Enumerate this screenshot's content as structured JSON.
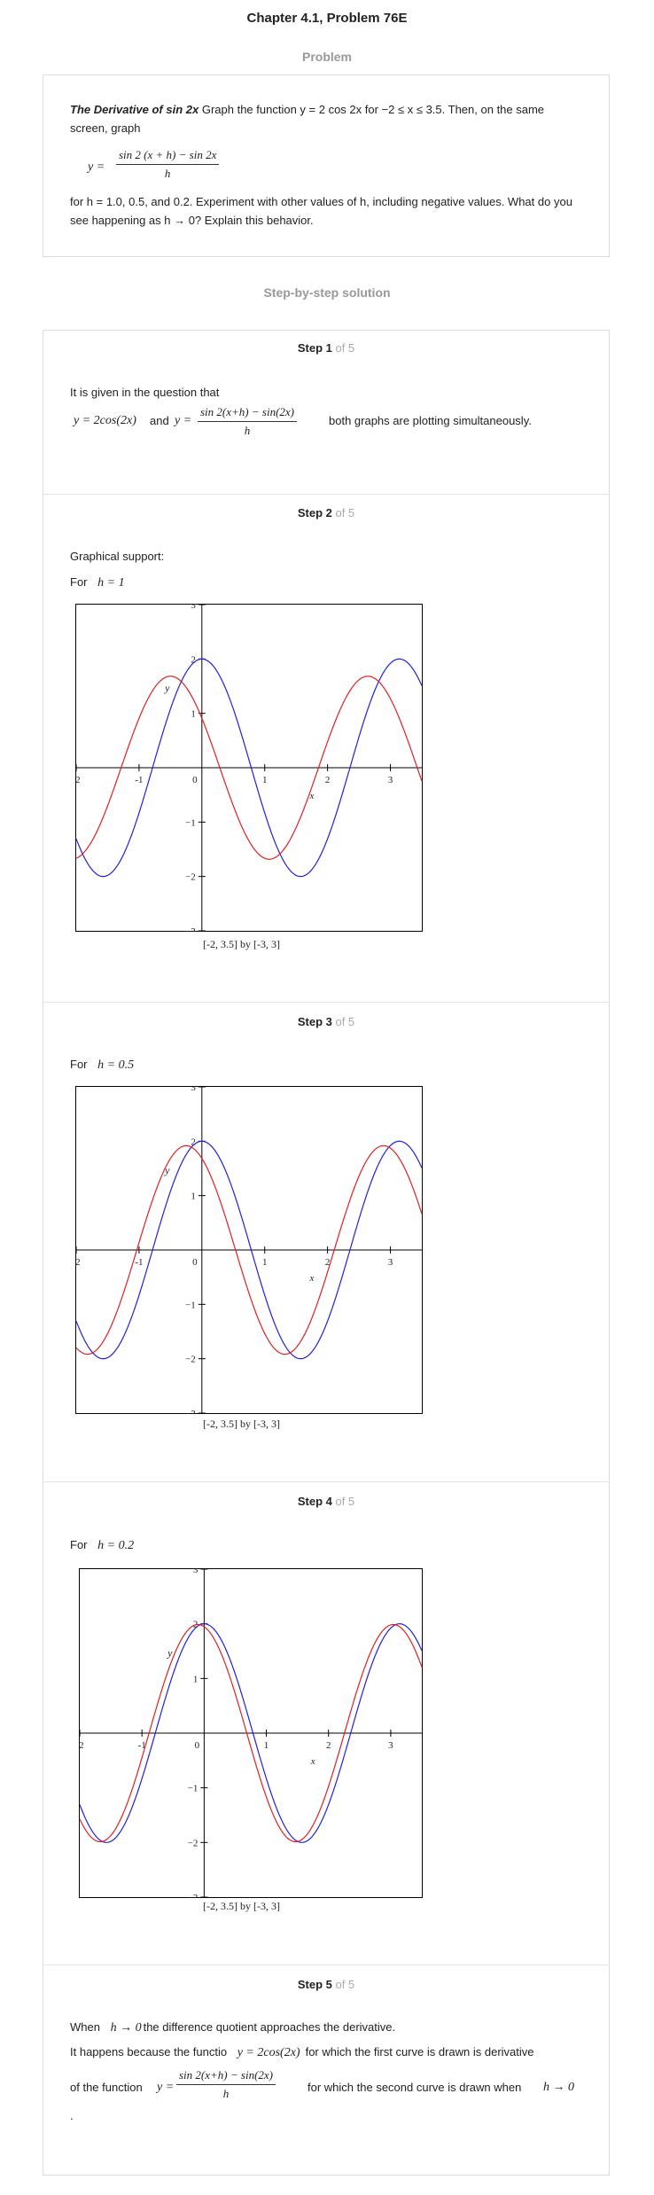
{
  "header": {
    "title": "Chapter 4.1, Problem 76E"
  },
  "problem": {
    "heading": "Problem",
    "bold_title": "The Derivative of sin 2x",
    "text_1": " Graph the function y = 2 cos 2x for −2 ≤ x ≤ 3.5. Then, on the same screen, graph",
    "formula_lhs": "y =",
    "formula_num": "sin 2 (x + h)  −  sin 2x",
    "formula_den": "h",
    "text_2": "for h = 1.0, 0.5, and 0.2. Experiment with other values of h, including negative values. What do you see happening as h → 0? Explain this behavior."
  },
  "solution": {
    "heading": "Step-by-step solution",
    "steps": [
      {
        "num": "Step 1",
        "of": " of 5",
        "intro": "It is given in the question that",
        "eq1": "y = 2cos(2x)",
        "and": "and",
        "eq2_lhs": "y =",
        "eq2_num": "sin 2(x+h) − sin(2x)",
        "eq2_den": "h",
        "tail": "both graphs are plotting simultaneously."
      },
      {
        "num": "Step 2",
        "of": " of 5",
        "label1": "Graphical support:",
        "label2": "For",
        "hval": "h = 1"
      },
      {
        "num": "Step 3",
        "of": " of 5",
        "label2": "For",
        "hval": "h = 0.5"
      },
      {
        "num": "Step 4",
        "of": " of 5",
        "label2": "For",
        "hval": "h = 0.2"
      },
      {
        "num": "Step 5",
        "of": " of 5",
        "line1_a": "When",
        "line1_math": "h → 0",
        "line1_b": "the difference quotient approaches the derivative.",
        "line2_a": "It happens because the functio",
        "line2_math": "y = 2cos(2x)",
        "line2_b": "for which the first curve is drawn is derivative",
        "line3_a": "of the function",
        "line3_lhs": "y =",
        "line3_num": "sin 2(x+h) − sin(2x)",
        "line3_den": "h",
        "line3_b": "for which the second curve is drawn when",
        "line3_math": "h → 0",
        "line4": "."
      }
    ]
  },
  "chart_data": [
    {
      "type": "line",
      "title": "",
      "window_caption": "[-2, 3.5] by [-3, 3]",
      "xlabel": "x",
      "ylabel": "y",
      "xlim": [
        -2,
        3.5
      ],
      "ylim": [
        -3,
        3
      ],
      "x_ticks": [
        "-2",
        "-1",
        "0",
        "1",
        "2",
        "3"
      ],
      "y_ticks": [
        "3",
        "2",
        "1",
        "-1",
        "-2",
        "-3"
      ],
      "h": 1.0,
      "series": [
        {
          "function": "2cos(2x)",
          "color": "#2020e0"
        },
        {
          "function": "(sin 2(x+h) − sin 2x)/h",
          "color": "#e02020"
        }
      ]
    },
    {
      "type": "line",
      "title": "",
      "window_caption": "[-2, 3.5] by [-3, 3]",
      "xlabel": "x",
      "ylabel": "y",
      "xlim": [
        -2,
        3.5
      ],
      "ylim": [
        -3,
        3
      ],
      "x_ticks": [
        "-2",
        "-1",
        "0",
        "1",
        "2",
        "3"
      ],
      "y_ticks": [
        "3",
        "2",
        "1",
        "-1",
        "-2",
        "-3"
      ],
      "h": 0.5,
      "series": [
        {
          "function": "2cos(2x)",
          "color": "#2020e0"
        },
        {
          "function": "(sin 2(x+h) − sin 2x)/h",
          "color": "#e02020"
        }
      ]
    },
    {
      "type": "line",
      "title": "",
      "window_caption": "[-2, 3.5] by [-3, 3]",
      "xlabel": "x",
      "ylabel": "y",
      "xlim": [
        -2,
        3.5
      ],
      "ylim": [
        -3,
        3
      ],
      "x_ticks": [
        "-2",
        "-1",
        "0",
        "1",
        "2",
        "3"
      ],
      "y_ticks": [
        "3",
        "2",
        "1",
        "-1",
        "-2",
        "-3"
      ],
      "h": 0.2,
      "series": [
        {
          "function": "2cos(2x)",
          "color": "#2020e0"
        },
        {
          "function": "(sin 2(x+h) − sin 2x)/h",
          "color": "#e02020"
        }
      ]
    }
  ]
}
